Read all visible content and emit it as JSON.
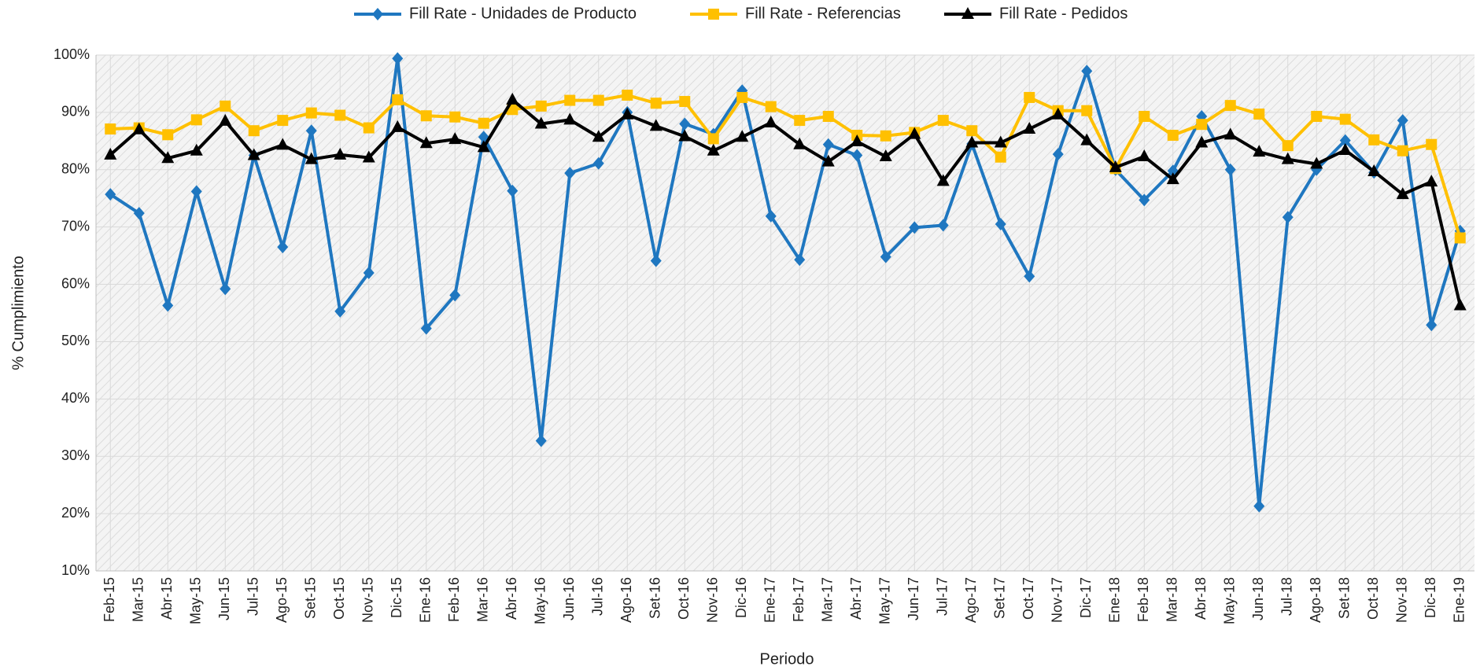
{
  "chart_data": {
    "type": "line",
    "x_label": "Periodo",
    "y_label": "% Cumplimiento",
    "categories": [
      "Feb-15",
      "Mar-15",
      "Abr-15",
      "May-15",
      "Jun-15",
      "Jul-15",
      "Ago-15",
      "Set-15",
      "Oct-15",
      "Nov-15",
      "Dic-15",
      "Ene-16",
      "Feb-16",
      "Mar-16",
      "Abr-16",
      "May-16",
      "Jun-16",
      "Jul-16",
      "Ago-16",
      "Set-16",
      "Oct-16",
      "Nov-16",
      "Dic-16",
      "Ene-17",
      "Feb-17",
      "Mar-17",
      "Abr-17",
      "May-17",
      "Jun-17",
      "Jul-17",
      "Ago-17",
      "Set-17",
      "Oct-17",
      "Nov-17",
      "Dic-17",
      "Ene-18",
      "Feb-18",
      "Mar-18",
      "Abr-18",
      "May-18",
      "Jun-18",
      "Jul-18",
      "Ago-18",
      "Set-18",
      "Oct-18",
      "Nov-18",
      "Dic-18",
      "Ene-19"
    ],
    "series": [
      {
        "name": "Fill Rate - Unidades de Producto",
        "color": "#1f77c0",
        "marker": "diamond",
        "values": [
          75.7,
          72.4,
          56.3,
          76.2,
          59.2,
          82.5,
          66.5,
          86.8,
          55.3,
          62,
          99.4,
          52.3,
          58.1,
          85.7,
          76.3,
          32.7,
          79.4,
          81.1,
          90,
          64.1,
          88,
          86.2,
          93.8,
          71.9,
          64.3,
          84.4,
          82.5,
          64.8,
          69.9,
          70.3,
          84.5,
          70.5,
          61.4,
          82.7,
          97.2,
          80,
          74.7,
          79.8,
          89.3,
          80,
          21.3,
          71.7,
          80,
          85.1,
          79.5,
          88.6,
          52.9,
          69.3
        ]
      },
      {
        "name": "Fill Rate - Referencias",
        "color": "#ffc000",
        "marker": "square",
        "values": [
          87.1,
          87.3,
          86.1,
          88.7,
          91.1,
          86.8,
          88.6,
          89.9,
          89.5,
          87.3,
          92.2,
          89.4,
          89.2,
          88.1,
          90.5,
          91.1,
          92.1,
          92.1,
          93.0,
          91.6,
          91.9,
          85.4,
          92.6,
          91.0,
          88.6,
          89.3,
          86.0,
          85.9,
          86.5,
          88.6,
          86.8,
          82.2,
          92.6,
          90.3,
          90.3,
          80.2,
          89.3,
          86.0,
          87.9,
          91.2,
          89.7,
          84.2,
          89.3,
          88.8,
          85.2,
          83.3,
          84.4,
          68.1
        ]
      },
      {
        "name": "Fill Rate - Pedidos",
        "color": "#000000",
        "marker": "triangle",
        "values": [
          82.6,
          87.0,
          82.0,
          83.3,
          88.5,
          82.5,
          84.3,
          81.8,
          82.6,
          82.1,
          87.4,
          84.6,
          85.3,
          83.9,
          92.2,
          88.0,
          88.7,
          85.7,
          89.6,
          87.6,
          85.8,
          83.3,
          85.7,
          88.2,
          84.4,
          81.4,
          84.9,
          82.3,
          86.2,
          78.0,
          84.7,
          84.7,
          87.1,
          89.6,
          85.1,
          80.4,
          82.3,
          78.3,
          84.7,
          86.1,
          83.1,
          81.8,
          81.0,
          83.4,
          79.7,
          75.7,
          77.9,
          56.3
        ]
      }
    ],
    "ylim": [
      10,
      100
    ],
    "yticks": [
      {
        "value": 10,
        "label": "10%"
      },
      {
        "value": 20,
        "label": "20%"
      },
      {
        "value": 30,
        "label": "30%"
      },
      {
        "value": 40,
        "label": "40%"
      },
      {
        "value": 50,
        "label": "50%"
      },
      {
        "value": 60,
        "label": "60%"
      },
      {
        "value": 70,
        "label": "70%"
      },
      {
        "value": 80,
        "label": "80%"
      },
      {
        "value": 90,
        "label": "90%"
      },
      {
        "value": 100,
        "label": "100%"
      }
    ],
    "grid": true,
    "legend": "top"
  }
}
